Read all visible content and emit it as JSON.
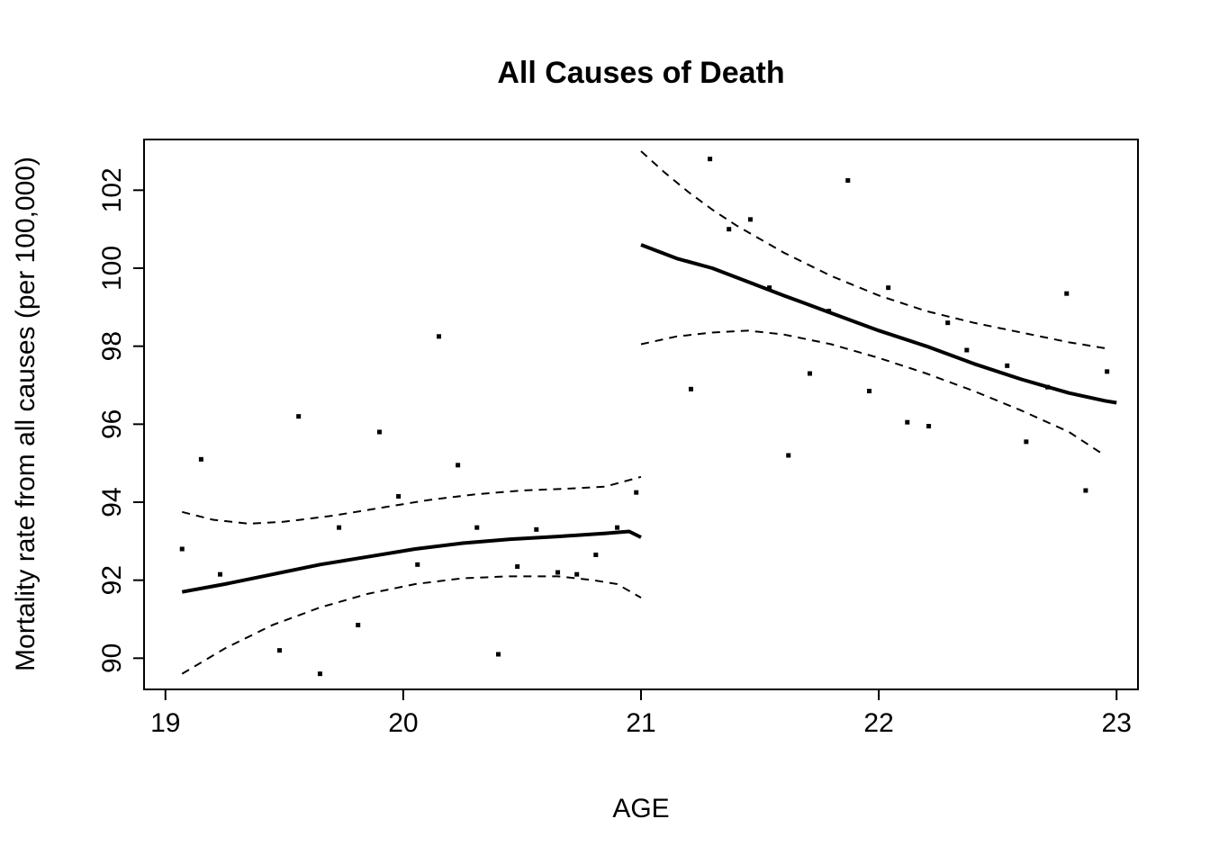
{
  "colors": {
    "foreground": "#000000",
    "background": "#ffffff"
  },
  "chart_data": {
    "type": "scatter",
    "title": "All Causes of Death",
    "xlabel": "AGE",
    "ylabel": "Mortality rate from all causes (per 100,000)",
    "xlim": [
      18.91,
      23.09
    ],
    "ylim": [
      89.2,
      103.3
    ],
    "xticks": [
      19,
      20,
      21,
      22,
      23
    ],
    "yticks": [
      90,
      92,
      94,
      96,
      98,
      100,
      102
    ],
    "grid": false,
    "legend": null,
    "marker": "filled-square",
    "points": [
      [
        19.07,
        92.8
      ],
      [
        19.15,
        95.1
      ],
      [
        19.23,
        92.15
      ],
      [
        19.48,
        90.2
      ],
      [
        19.56,
        96.2
      ],
      [
        19.65,
        89.6
      ],
      [
        19.73,
        93.35
      ],
      [
        19.81,
        90.85
      ],
      [
        19.9,
        95.8
      ],
      [
        19.98,
        94.15
      ],
      [
        20.06,
        92.4
      ],
      [
        20.15,
        98.25
      ],
      [
        20.23,
        94.95
      ],
      [
        20.31,
        93.35
      ],
      [
        20.4,
        90.1
      ],
      [
        20.48,
        92.35
      ],
      [
        20.56,
        93.3
      ],
      [
        20.65,
        92.2
      ],
      [
        20.73,
        92.15
      ],
      [
        20.81,
        92.65
      ],
      [
        20.9,
        93.35
      ],
      [
        20.98,
        94.25
      ],
      [
        21.21,
        96.9
      ],
      [
        21.29,
        102.8
      ],
      [
        21.37,
        101.0
      ],
      [
        21.46,
        101.25
      ],
      [
        21.54,
        99.5
      ],
      [
        21.62,
        95.2
      ],
      [
        21.71,
        97.3
      ],
      [
        21.79,
        98.9
      ],
      [
        21.87,
        102.25
      ],
      [
        21.96,
        96.85
      ],
      [
        22.04,
        99.5
      ],
      [
        22.12,
        96.05
      ],
      [
        22.21,
        95.95
      ],
      [
        22.29,
        98.6
      ],
      [
        22.37,
        97.9
      ],
      [
        22.54,
        97.5
      ],
      [
        22.62,
        95.55
      ],
      [
        22.71,
        96.95
      ],
      [
        22.79,
        99.35
      ],
      [
        22.87,
        94.3
      ],
      [
        22.96,
        97.35
      ]
    ],
    "curves": [
      {
        "name": "fit-line-left",
        "style": "solid",
        "width": 4,
        "points": [
          [
            19.07,
            91.7
          ],
          [
            19.25,
            91.9
          ],
          [
            19.45,
            92.15
          ],
          [
            19.65,
            92.4
          ],
          [
            19.85,
            92.6
          ],
          [
            20.05,
            92.8
          ],
          [
            20.25,
            92.95
          ],
          [
            20.45,
            93.05
          ],
          [
            20.65,
            93.12
          ],
          [
            20.85,
            93.2
          ],
          [
            20.95,
            93.25
          ],
          [
            21.0,
            93.1
          ]
        ]
      },
      {
        "name": "ci-upper-left",
        "style": "dashed",
        "width": 2,
        "points": [
          [
            19.07,
            93.75
          ],
          [
            19.2,
            93.55
          ],
          [
            19.35,
            93.45
          ],
          [
            19.5,
            93.5
          ],
          [
            19.7,
            93.65
          ],
          [
            19.9,
            93.85
          ],
          [
            20.1,
            94.05
          ],
          [
            20.3,
            94.2
          ],
          [
            20.5,
            94.3
          ],
          [
            20.7,
            94.35
          ],
          [
            20.85,
            94.4
          ],
          [
            21.0,
            94.65
          ]
        ]
      },
      {
        "name": "ci-lower-left",
        "style": "dashed",
        "width": 2,
        "points": [
          [
            19.07,
            89.6
          ],
          [
            19.25,
            90.25
          ],
          [
            19.45,
            90.85
          ],
          [
            19.65,
            91.3
          ],
          [
            19.85,
            91.65
          ],
          [
            20.05,
            91.9
          ],
          [
            20.25,
            92.05
          ],
          [
            20.45,
            92.1
          ],
          [
            20.65,
            92.1
          ],
          [
            20.8,
            92.0
          ],
          [
            20.9,
            91.9
          ],
          [
            21.0,
            91.55
          ]
        ]
      },
      {
        "name": "fit-line-right",
        "style": "solid",
        "width": 4,
        "points": [
          [
            21.0,
            100.6
          ],
          [
            21.15,
            100.25
          ],
          [
            21.3,
            100.0
          ],
          [
            21.45,
            99.65
          ],
          [
            21.6,
            99.3
          ],
          [
            21.8,
            98.85
          ],
          [
            22.0,
            98.4
          ],
          [
            22.2,
            98.0
          ],
          [
            22.4,
            97.55
          ],
          [
            22.6,
            97.15
          ],
          [
            22.8,
            96.8
          ],
          [
            22.95,
            96.6
          ],
          [
            23.0,
            96.55
          ]
        ]
      },
      {
        "name": "ci-upper-right",
        "style": "dashed",
        "width": 2,
        "points": [
          [
            21.0,
            103.0
          ],
          [
            21.1,
            102.45
          ],
          [
            21.2,
            101.95
          ],
          [
            21.3,
            101.5
          ],
          [
            21.4,
            101.1
          ],
          [
            21.5,
            100.75
          ],
          [
            21.6,
            100.4
          ],
          [
            21.8,
            99.8
          ],
          [
            22.0,
            99.3
          ],
          [
            22.2,
            98.9
          ],
          [
            22.4,
            98.6
          ],
          [
            22.6,
            98.35
          ],
          [
            22.8,
            98.1
          ],
          [
            22.95,
            97.95
          ]
        ]
      },
      {
        "name": "ci-lower-right",
        "style": "dashed",
        "width": 2,
        "points": [
          [
            21.0,
            98.05
          ],
          [
            21.15,
            98.25
          ],
          [
            21.3,
            98.35
          ],
          [
            21.45,
            98.4
          ],
          [
            21.6,
            98.3
          ],
          [
            21.8,
            98.05
          ],
          [
            22.0,
            97.7
          ],
          [
            22.2,
            97.3
          ],
          [
            22.4,
            96.85
          ],
          [
            22.6,
            96.35
          ],
          [
            22.8,
            95.8
          ],
          [
            22.95,
            95.2
          ]
        ]
      }
    ]
  }
}
